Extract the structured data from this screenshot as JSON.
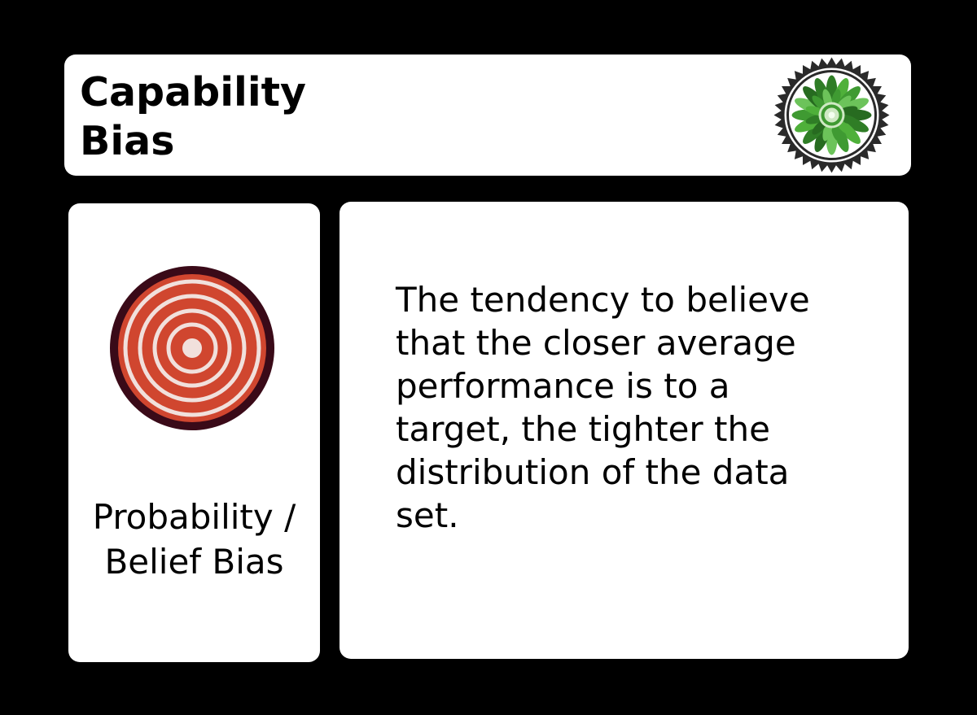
{
  "header": {
    "title_line1": "Capability",
    "title_line2": "Bias",
    "badge_icon": "green-leaf-seal-icon"
  },
  "category": {
    "icon": "bullseye-target-icon",
    "line1": "Probability /",
    "line2": "Belief Bias"
  },
  "description": {
    "lines": [
      "The tendency to believe",
      "that the closer average",
      "performance is to a",
      "target, the tighter the",
      "distribution of the data",
      "set."
    ]
  },
  "colors": {
    "background": "#000000",
    "card": "#ffffff",
    "target_red": "#d0462f",
    "target_ring": "#f1e0dc",
    "target_rim": "#3a0a18",
    "seal_green": "#3f9a32"
  }
}
